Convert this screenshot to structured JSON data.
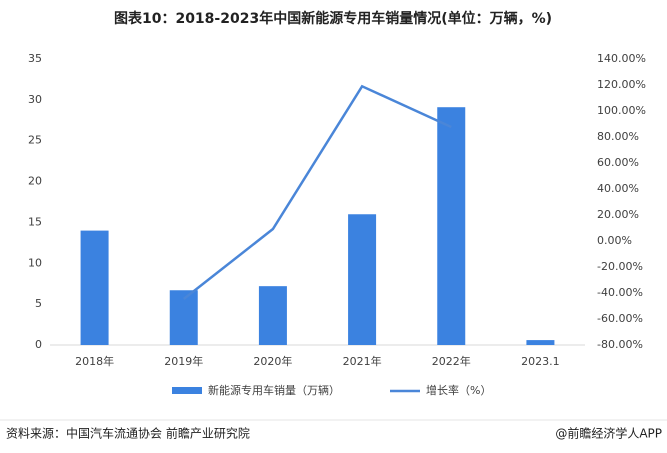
{
  "chart_data": {
    "type": "bar_line",
    "title": "图表10：2018-2023年中国新能源专用车销量情况(单位：万辆，%)",
    "categories": [
      "2018年",
      "2019年",
      "2020年",
      "2021年",
      "2022年",
      "2023.1"
    ],
    "series": [
      {
        "name": "新能源专用车销量（万辆）",
        "type": "bar",
        "color": "#3b82e0",
        "values": [
          14,
          6.7,
          7.2,
          16,
          29.1,
          0.6
        ]
      },
      {
        "name": "增长率（%）",
        "type": "line",
        "axis": "y2",
        "color": "#4a86d8",
        "values": [
          null,
          -44.6,
          9.2,
          119,
          87.7,
          null
        ]
      }
    ],
    "ylim": [
      0,
      35
    ],
    "yticks": [
      0,
      5,
      10,
      15,
      20,
      25,
      30,
      35
    ],
    "y2lim": [
      -80,
      140
    ],
    "y2ticks": [
      {
        "value": -80,
        "label": "-80.00%"
      },
      {
        "value": -60,
        "label": "-60.00%"
      },
      {
        "value": -40,
        "label": "-40.00%"
      },
      {
        "value": -20,
        "label": "-20.00%"
      },
      {
        "value": 0,
        "label": "0.00%"
      },
      {
        "value": 20,
        "label": "20.00%"
      },
      {
        "value": 40,
        "label": "40.00%"
      },
      {
        "value": 60,
        "label": "60.00%"
      },
      {
        "value": 80,
        "label": "80.00%"
      },
      {
        "value": 100,
        "label": "100.00%"
      },
      {
        "value": 120,
        "label": "120.00%"
      },
      {
        "value": 140,
        "label": "140.00%"
      }
    ],
    "grid": false,
    "source": "资料来源：中国汽车流通协会 前瞻产业研究院",
    "credit": "@前瞻经济学人APP"
  }
}
